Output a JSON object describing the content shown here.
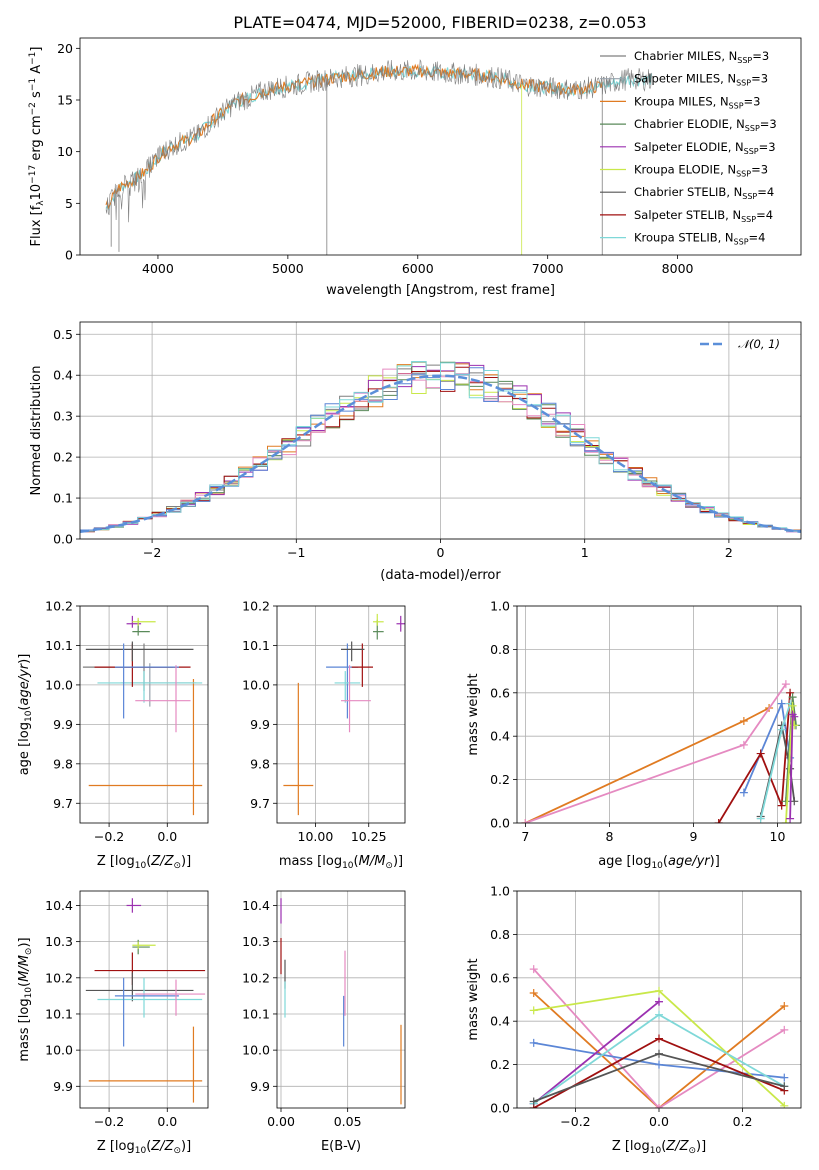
{
  "figure_title": "PLATE=0474, MJD=52000, FIBERID=0238, z=0.053",
  "colors": {
    "chabrier_miles": "#7f7f7f",
    "salpeter_miles": "#9aa3ad",
    "kroupa_miles": "#e07b22",
    "chabrier_elodie": "#5a8a5a",
    "salpeter_elodie": "#9b30b0",
    "kroupa_elodie": "#c9e84a",
    "chabrier_stelib": "#555555",
    "salpeter_stelib": "#a01010",
    "kroupa_stelib": "#7fd8d8",
    "pink": "#e58ac1",
    "blue": "#5b86d6",
    "normal_curve": "#5b8fd9",
    "grid": "#b0b0b0"
  },
  "chart_data": [
    {
      "id": "spectrum",
      "type": "line",
      "title": "PLATE=0474, MJD=52000, FIBERID=0238, z=0.053",
      "xlabel": "wavelength [Angstrom, rest frame]",
      "ylabel": "Flux [f_λ10^-17 erg cm^-2 s^-1 A^-1]",
      "xlim": [
        3400,
        8950
      ],
      "ylim": [
        0,
        21
      ],
      "xticks": [
        "4000",
        "5000",
        "6000",
        "7000",
        "8000"
      ],
      "yticks": [
        "0",
        "5",
        "10",
        "15",
        "20"
      ],
      "grid": false,
      "legend_position": "right",
      "legend": [
        "Chabrier MILES, N_SSP=3",
        "Salpeter MILES, N_SSP=3",
        "Kroupa MILES, N_SSP=3",
        "Chabrier ELODIE, N_SSP=3",
        "Salpeter ELODIE, N_SSP=3",
        "Kroupa ELODIE, N_SSP=3",
        "Chabrier STELIB, N_SSP=4",
        "Salpeter STELIB, N_SSP=4",
        "Kroupa STELIB, N_SSP=4"
      ],
      "continuum": {
        "x": [
          3600,
          3700,
          3800,
          3900,
          4000,
          4100,
          4200,
          4300,
          4400,
          4500,
          4600,
          4700,
          4800,
          4900,
          5000,
          5200,
          5400,
          5600,
          5800,
          6000,
          6200,
          6400,
          6600,
          6800,
          7000,
          7200,
          7400,
          7600,
          7800
        ],
        "y": [
          4.5,
          6.5,
          7.2,
          8.0,
          9.5,
          10.5,
          11.0,
          11.5,
          12.8,
          13.8,
          14.8,
          15.2,
          15.8,
          16.2,
          16.3,
          16.8,
          17.2,
          17.5,
          17.8,
          17.8,
          17.6,
          17.5,
          17.2,
          16.5,
          16.2,
          16.0,
          16.3,
          17.0,
          17.0
        ]
      }
    },
    {
      "id": "residuals",
      "type": "bar",
      "xlabel": "(data-model)/error",
      "ylabel": "Normed distribution",
      "xlim": [
        -2.5,
        2.5
      ],
      "ylim": [
        0,
        0.53
      ],
      "xticks": [
        "−2",
        "−1",
        "0",
        "1",
        "2"
      ],
      "yticks": [
        "0.0",
        "0.1",
        "0.2",
        "0.3",
        "0.4",
        "0.5"
      ],
      "grid": true,
      "legend_position": "top-right",
      "legend": [
        "𝒩(0, 1)"
      ],
      "bin_width": 0.1
    },
    {
      "id": "age-vs-Z",
      "type": "scatter",
      "xlabel": "Z [log10(Z/Z⊙)]",
      "ylabel": "age  [log10(age/yr)]",
      "xlim": [
        -0.3,
        0.14
      ],
      "ylim": [
        9.65,
        10.2
      ],
      "xticks": [
        "−0.2",
        "0.0"
      ],
      "yticks": [
        "9.7",
        "9.8",
        "9.9",
        "10.0",
        "10.1",
        "10.2"
      ],
      "grid": true,
      "points": [
        {
          "series": "Kroupa MILES",
          "x": 0.09,
          "y": 9.745,
          "xerr": [
            0.36,
            0.03
          ],
          "yerr": [
            0.075,
            0.27
          ]
        },
        {
          "series": "Salpeter MILES",
          "x": -0.06,
          "y": 10.005,
          "xerr": [
            0.1,
            0.16
          ],
          "yerr": [
            0.06,
            0.05
          ]
        },
        {
          "series": "Chabrier MILES",
          "x": -0.08,
          "y": 10.045,
          "xerr": [
            0.21,
            0.1
          ],
          "yerr": [
            0.06,
            0.06
          ]
        },
        {
          "series": "Kroupa STELIB",
          "x": -0.08,
          "y": 10.005,
          "xerr": [
            0.16,
            0.2
          ],
          "yerr": [
            0.05,
            0.03
          ]
        },
        {
          "series": "Salpeter STELIB",
          "x": -0.12,
          "y": 10.045,
          "xerr": [
            0.13,
            0.2
          ],
          "yerr": [
            0.05,
            0.06
          ]
        },
        {
          "series": "Chabrier STELIB",
          "x": -0.12,
          "y": 10.09,
          "xerr": [
            0.16,
            0.21
          ],
          "yerr": [
            0.03,
            0.02
          ]
        },
        {
          "series": "Chabrier ELODIE",
          "x": -0.1,
          "y": 10.135,
          "xerr": [
            0.02,
            0.04
          ],
          "yerr": [
            0.01,
            0.03
          ]
        },
        {
          "series": "Salpeter ELODIE",
          "x": -0.12,
          "y": 10.155,
          "xerr": [
            0.02,
            0.03
          ],
          "yerr": [
            0.01,
            0.02
          ]
        },
        {
          "series": "Kroupa ELODIE",
          "x": -0.1,
          "y": 10.16,
          "xerr": [
            0.02,
            0.06
          ],
          "yerr": [
            0.01,
            0.01
          ]
        },
        {
          "series": "blue",
          "x": -0.15,
          "y": 10.045,
          "xerr": [
            0.03,
            0.19
          ],
          "yerr": [
            0.13,
            0.06
          ]
        },
        {
          "series": "pink",
          "x": 0.03,
          "y": 9.96,
          "xerr": [
            0.14,
            0.05
          ],
          "yerr": [
            0.08,
            0.09
          ]
        }
      ]
    },
    {
      "id": "age-vs-mass",
      "type": "scatter",
      "xlabel": "mass [log10(M/M⊙)]",
      "ylabel": "",
      "xlim": [
        9.82,
        10.42
      ],
      "ylim": [
        9.65,
        10.2
      ],
      "xticks": [
        "10.00",
        "10.25"
      ],
      "yticks": [
        "9.7",
        "9.8",
        "9.9",
        "10.0",
        "10.1",
        "10.2"
      ],
      "grid": true,
      "points": [
        {
          "series": "Kroupa MILES",
          "x": 9.92,
          "y": 9.745,
          "xerr": [
            0.07,
            0.07
          ],
          "yerr": [
            0.075,
            0.26
          ]
        },
        {
          "series": "blue",
          "x": 10.15,
          "y": 10.045,
          "xerr": [
            0.1,
            0.05
          ],
          "yerr": [
            0.13,
            0.06
          ]
        },
        {
          "series": "Kroupa STELIB",
          "x": 10.14,
          "y": 10.005,
          "xerr": [
            0.05,
            0.07
          ],
          "yerr": [
            0.05,
            0.03
          ]
        },
        {
          "series": "pink",
          "x": 10.16,
          "y": 9.96,
          "xerr": [
            0.04,
            0.1
          ],
          "yerr": [
            0.08,
            0.09
          ]
        },
        {
          "series": "Salpeter STELIB",
          "x": 10.22,
          "y": 10.045,
          "xerr": [
            0.05,
            0.05
          ],
          "yerr": [
            0.05,
            0.06
          ]
        },
        {
          "series": "Chabrier STELIB",
          "x": 10.17,
          "y": 10.09,
          "xerr": [
            0.05,
            0.06
          ],
          "yerr": [
            0.03,
            0.02
          ]
        },
        {
          "series": "Chabrier ELODIE",
          "x": 10.29,
          "y": 10.135,
          "xerr": [
            0.02,
            0.03
          ],
          "yerr": [
            0.02,
            0.03
          ]
        },
        {
          "series": "Kroupa ELODIE",
          "x": 10.29,
          "y": 10.16,
          "xerr": [
            0.02,
            0.03
          ],
          "yerr": [
            0.01,
            0.02
          ]
        },
        {
          "series": "Salpeter ELODIE",
          "x": 10.4,
          "y": 10.155,
          "xerr": [
            0.02,
            0.02
          ],
          "yerr": [
            0.02,
            0.02
          ]
        }
      ]
    },
    {
      "id": "massweight-vs-age",
      "type": "line",
      "xlabel": "age  [log10(age/yr)]",
      "ylabel": "mass weight",
      "xlim": [
        6.9,
        10.28
      ],
      "ylim": [
        0,
        1.0
      ],
      "xticks": [
        "7",
        "8",
        "9",
        "10"
      ],
      "yticks": [
        "0.0",
        "0.2",
        "0.4",
        "0.6",
        "0.8",
        "1.0"
      ],
      "grid": true,
      "series": [
        {
          "name": "Kroupa MILES",
          "x": [
            7.0,
            9.6,
            9.9
          ],
          "y": [
            0.0,
            0.47,
            0.53
          ]
        },
        {
          "name": "pink",
          "x": [
            7.0,
            9.6,
            10.1
          ],
          "y": [
            0.0,
            0.36,
            0.64
          ]
        },
        {
          "name": "blue",
          "x": [
            9.6,
            10.05,
            10.15
          ],
          "y": [
            0.14,
            0.55,
            0.3
          ]
        },
        {
          "name": "Salpeter STELIB",
          "x": [
            9.3,
            9.8,
            10.05,
            10.15
          ],
          "y": [
            0.0,
            0.32,
            0.08,
            0.6
          ]
        },
        {
          "name": "Chabrier STELIB",
          "x": [
            9.8,
            10.05,
            10.15,
            10.2
          ],
          "y": [
            0.03,
            0.45,
            0.25,
            0.1
          ]
        },
        {
          "name": "Kroupa STELIB",
          "x": [
            9.8,
            10.05,
            10.15
          ],
          "y": [
            0.02,
            0.43,
            0.55
          ]
        },
        {
          "name": "Chabrier ELODIE",
          "x": [
            10.1,
            10.18,
            10.22
          ],
          "y": [
            0.1,
            0.58,
            0.45
          ]
        },
        {
          "name": "Kroupa ELODIE",
          "x": [
            10.1,
            10.18,
            10.2
          ],
          "y": [
            0.0,
            0.54,
            0.45
          ]
        },
        {
          "name": "Salpeter ELODIE",
          "x": [
            10.15,
            10.18,
            10.2
          ],
          "y": [
            0.02,
            0.5,
            0.49
          ]
        }
      ]
    },
    {
      "id": "mass-vs-Z",
      "type": "scatter",
      "xlabel": "Z [log10(Z/Z⊙)]",
      "ylabel": "mass [log10(M/M⊙)]",
      "xlim": [
        -0.3,
        0.14
      ],
      "ylim": [
        9.84,
        10.44
      ],
      "xticks": [
        "−0.2",
        "0.0"
      ],
      "yticks": [
        "9.9",
        "10.0",
        "10.1",
        "10.2",
        "10.3",
        "10.4"
      ],
      "grid": true,
      "points": [
        {
          "series": "Kroupa MILES",
          "x": 0.09,
          "y": 9.915,
          "xerr": [
            0.36,
            0.03
          ],
          "yerr": [
            0.06,
            0.15
          ]
        },
        {
          "series": "Salpeter STELIB",
          "x": -0.12,
          "y": 10.22,
          "xerr": [
            0.13,
            0.25
          ],
          "yerr": [
            0.04,
            0.05
          ]
        },
        {
          "series": "Chabrier STELIB",
          "x": -0.12,
          "y": 10.165,
          "xerr": [
            0.16,
            0.21
          ],
          "yerr": [
            0.03,
            0.05
          ]
        },
        {
          "series": "Kroupa STELIB",
          "x": -0.08,
          "y": 10.14,
          "xerr": [
            0.16,
            0.2
          ],
          "yerr": [
            0.05,
            0.06
          ]
        },
        {
          "series": "blue",
          "x": -0.15,
          "y": 10.15,
          "xerr": [
            0.03,
            0.19
          ],
          "yerr": [
            0.14,
            0.05
          ]
        },
        {
          "series": "pink",
          "x": 0.03,
          "y": 10.155,
          "xerr": [
            0.14,
            0.1
          ],
          "yerr": [
            0.06,
            0.04
          ]
        },
        {
          "series": "Chabrier ELODIE",
          "x": -0.1,
          "y": 10.285,
          "xerr": [
            0.02,
            0.04
          ],
          "yerr": [
            0.02,
            0.02
          ]
        },
        {
          "series": "Kroupa ELODIE",
          "x": -0.1,
          "y": 10.29,
          "xerr": [
            0.02,
            0.06
          ],
          "yerr": [
            0.01,
            0.01
          ]
        },
        {
          "series": "Salpeter ELODIE",
          "x": -0.12,
          "y": 10.4,
          "xerr": [
            0.02,
            0.03
          ],
          "yerr": [
            0.02,
            0.02
          ]
        }
      ]
    },
    {
      "id": "mass-vs-ebv",
      "type": "scatter",
      "xlabel": "E(B-V)",
      "ylabel": "",
      "xlim": [
        -0.003,
        0.093
      ],
      "ylim": [
        9.84,
        10.44
      ],
      "xticks": [
        "0.00",
        "0.05"
      ],
      "yticks": [
        "9.9",
        "10.0",
        "10.1",
        "10.2",
        "10.3",
        "10.4"
      ],
      "grid": true,
      "points": [
        {
          "series": "Salpeter ELODIE",
          "x": 0.0,
          "y": 10.38,
          "xerr": [
            0,
            0
          ],
          "yerr": [
            0.03,
            0.04
          ]
        },
        {
          "series": "Salpeter STELIB",
          "x": 0.0,
          "y": 10.26,
          "xerr": [
            0,
            0
          ],
          "yerr": [
            0.05,
            0.05
          ]
        },
        {
          "series": "Chabrier STELIB",
          "x": 0.003,
          "y": 10.21,
          "xerr": [
            0,
            0
          ],
          "yerr": [
            0.04,
            0.04
          ]
        },
        {
          "series": "Kroupa STELIB",
          "x": 0.003,
          "y": 10.14,
          "xerr": [
            0,
            0
          ],
          "yerr": [
            0.05,
            0.05
          ]
        },
        {
          "series": "blue",
          "x": 0.047,
          "y": 10.08,
          "xerr": [
            0,
            0
          ],
          "yerr": [
            0.07,
            0.07
          ]
        },
        {
          "series": "pink",
          "x": 0.048,
          "y": 10.185,
          "xerr": [
            0,
            0
          ],
          "yerr": [
            0.09,
            0.09
          ]
        },
        {
          "series": "Kroupa MILES",
          "x": 0.09,
          "y": 9.96,
          "xerr": [
            0,
            0
          ],
          "yerr": [
            0.11,
            0.11
          ]
        }
      ]
    },
    {
      "id": "massweight-vs-Z",
      "type": "line",
      "xlabel": "Z [log10(Z/Z⊙)]",
      "ylabel": "mass weight",
      "xlim": [
        -0.34,
        0.34
      ],
      "ylim": [
        0,
        1.0
      ],
      "xticks": [
        "−0.2",
        "0.0",
        "0.2"
      ],
      "yticks": [
        "0.0",
        "0.2",
        "0.4",
        "0.6",
        "0.8",
        "1.0"
      ],
      "grid": true,
      "series": [
        {
          "name": "Kroupa MILES",
          "x": [
            -0.3,
            0.0,
            0.3
          ],
          "y": [
            0.53,
            0.0,
            0.47
          ]
        },
        {
          "name": "pink",
          "x": [
            -0.3,
            0.0,
            0.3
          ],
          "y": [
            0.64,
            0.0,
            0.36
          ]
        },
        {
          "name": "blue",
          "x": [
            -0.3,
            0.0,
            0.3
          ],
          "y": [
            0.3,
            0.2,
            0.14
          ]
        },
        {
          "name": "Kroupa ELODIE",
          "x": [
            -0.3,
            0.0,
            0.3
          ],
          "y": [
            0.45,
            0.54,
            0.01
          ]
        },
        {
          "name": "Salpeter ELODIE",
          "x": [
            -0.3,
            0.0,
            0.0
          ],
          "y": [
            0.02,
            0.49,
            0.49
          ]
        },
        {
          "name": "Kroupa STELIB",
          "x": [
            -0.3,
            0.0,
            0.3
          ],
          "y": [
            0.02,
            0.43,
            0.1
          ]
        },
        {
          "name": "Salpeter STELIB",
          "x": [
            -0.3,
            0.0,
            0.3
          ],
          "y": [
            0.0,
            0.32,
            0.08
          ]
        },
        {
          "name": "Chabrier STELIB",
          "x": [
            -0.3,
            0.0,
            0.3
          ],
          "y": [
            0.03,
            0.25,
            0.1
          ]
        }
      ]
    }
  ]
}
